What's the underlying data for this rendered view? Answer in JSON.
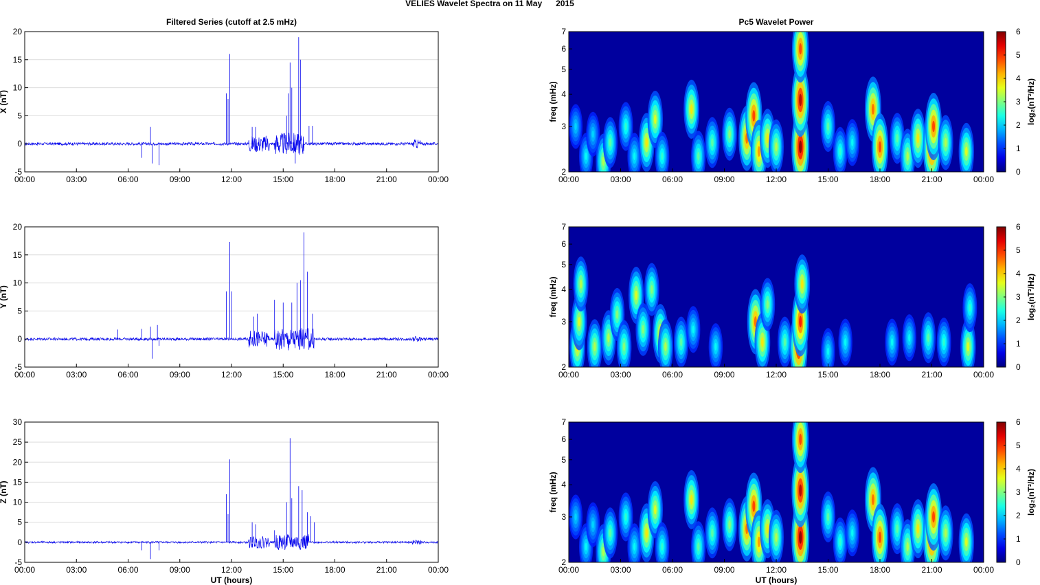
{
  "figure_title": "VELIES Wavelet Spectra on 11 May      2015",
  "colors": {
    "trace": "#0000ee",
    "axis": "#000000",
    "grid": "#d9d9d9"
  },
  "chart_data": [
    {
      "type": "line",
      "title": "Filtered Series (cutoff at 2.5 mHz)",
      "xlabel": "",
      "ylabel": "X (nT)",
      "xticks": [
        "00:00",
        "03:00",
        "06:00",
        "09:00",
        "12:00",
        "15:00",
        "18:00",
        "21:00",
        "00:00"
      ],
      "xlim": [
        0,
        24
      ],
      "ylim": [
        -5,
        20
      ],
      "yticks": [
        "-5",
        "0",
        "5",
        "10",
        "15",
        "20"
      ],
      "spikes": [
        [
          6.8,
          -2.5
        ],
        [
          7.3,
          3
        ],
        [
          7.4,
          -3.5
        ],
        [
          7.8,
          -3.8
        ],
        [
          11.7,
          9
        ],
        [
          11.8,
          8
        ],
        [
          11.9,
          16
        ],
        [
          13.2,
          3
        ],
        [
          13.4,
          3
        ],
        [
          15.2,
          5
        ],
        [
          15.3,
          9
        ],
        [
          15.4,
          14.5
        ],
        [
          15.5,
          10
        ],
        [
          15.7,
          -3.5
        ],
        [
          15.9,
          19
        ],
        [
          16.0,
          15
        ],
        [
          16.5,
          3.2
        ],
        [
          16.7,
          3.2
        ]
      ],
      "noise_windows": [
        [
          13.0,
          14.2,
          1.5
        ],
        [
          14.5,
          16.2,
          2
        ],
        [
          22.5,
          23.0,
          0.8
        ]
      ]
    },
    {
      "type": "line",
      "title": "",
      "xlabel": "",
      "ylabel": "Y (nT)",
      "xticks": [
        "00:00",
        "03:00",
        "06:00",
        "09:00",
        "12:00",
        "15:00",
        "18:00",
        "21:00",
        "00:00"
      ],
      "xlim": [
        0,
        24
      ],
      "ylim": [
        -5,
        20
      ],
      "yticks": [
        "-5",
        "0",
        "5",
        "10",
        "15",
        "20"
      ],
      "spikes": [
        [
          5.4,
          1.7
        ],
        [
          6.8,
          1.8
        ],
        [
          7.3,
          2.2
        ],
        [
          7.4,
          -3.5
        ],
        [
          7.7,
          2.5
        ],
        [
          7.8,
          -1.2
        ],
        [
          11.7,
          8.5
        ],
        [
          11.9,
          17.3
        ],
        [
          12.0,
          8.5
        ],
        [
          13.3,
          4
        ],
        [
          13.5,
          4.5
        ],
        [
          14.5,
          7
        ],
        [
          15.0,
          6.5
        ],
        [
          15.3,
          -2
        ],
        [
          15.5,
          6.5
        ],
        [
          15.8,
          10
        ],
        [
          16.0,
          10.5
        ],
        [
          16.2,
          19
        ],
        [
          16.4,
          12
        ],
        [
          16.7,
          4.5
        ]
      ],
      "noise_windows": [
        [
          13.0,
          14.2,
          1.5
        ],
        [
          14.5,
          16.8,
          2
        ],
        [
          22.5,
          23.0,
          0.5
        ]
      ]
    },
    {
      "type": "line",
      "title": "",
      "xlabel": "UT (hours)",
      "ylabel": "Z (nT)",
      "xticks": [
        "00:00",
        "03:00",
        "06:00",
        "09:00",
        "12:00",
        "15:00",
        "18:00",
        "21:00",
        "00:00"
      ],
      "xlim": [
        0,
        24
      ],
      "ylim": [
        -5,
        30
      ],
      "yticks": [
        "-5",
        "0",
        "5",
        "10",
        "15",
        "20",
        "25",
        "30"
      ],
      "spikes": [
        [
          6.8,
          -2
        ],
        [
          7.3,
          -4.2
        ],
        [
          7.8,
          -2
        ],
        [
          11.7,
          12
        ],
        [
          11.8,
          7
        ],
        [
          11.9,
          20.7
        ],
        [
          13.2,
          5
        ],
        [
          13.4,
          4.5
        ],
        [
          14.5,
          3
        ],
        [
          15.2,
          10
        ],
        [
          15.4,
          26
        ],
        [
          15.5,
          11
        ],
        [
          15.9,
          14
        ],
        [
          16.1,
          13
        ],
        [
          16.4,
          7.5
        ],
        [
          16.6,
          6.5
        ],
        [
          16.8,
          5
        ]
      ],
      "noise_windows": [
        [
          13.0,
          14.2,
          1.5
        ],
        [
          14.5,
          16.5,
          2
        ],
        [
          22.5,
          23.0,
          0.6
        ]
      ]
    },
    {
      "type": "heatmap",
      "title": "Pc5 Wavelet Power",
      "xlabel": "",
      "ylabel": "freq (mHz)",
      "xticks": [
        "00:00",
        "03:00",
        "06:00",
        "09:00",
        "12:00",
        "15:00",
        "18:00",
        "21:00",
        "00:00"
      ],
      "xlim": [
        0,
        24
      ],
      "ylim": [
        2,
        7
      ],
      "yscale": "log",
      "yticks": [
        "2",
        "3",
        "4",
        "5",
        "6",
        "7"
      ],
      "colorbar": {
        "label": "log₂(nT²/Hz)",
        "ticks": [
          "0",
          "1",
          "2",
          "3",
          "4",
          "5",
          "6"
        ],
        "range": [
          0,
          6
        ]
      },
      "blobs": [
        [
          0.4,
          3.0,
          0.25
        ],
        [
          1.0,
          2.3,
          0.3
        ],
        [
          1.4,
          2.8,
          0.25
        ],
        [
          2.0,
          2.2,
          0.5
        ],
        [
          2.4,
          2.6,
          0.4
        ],
        [
          3.3,
          3.0,
          0.35
        ],
        [
          3.8,
          2.3,
          0.3
        ],
        [
          4.5,
          2.6,
          0.6
        ],
        [
          5.0,
          3.2,
          0.55
        ],
        [
          5.4,
          2.3,
          0.35
        ],
        [
          7.1,
          3.5,
          0.6
        ],
        [
          7.5,
          2.3,
          0.4
        ],
        [
          8.3,
          2.6,
          0.4
        ],
        [
          9.3,
          2.8,
          0.45
        ],
        [
          10.3,
          2.7,
          0.75
        ],
        [
          10.7,
          3.3,
          0.8
        ],
        [
          11.0,
          2.4,
          0.7
        ],
        [
          11.5,
          2.7,
          0.6
        ],
        [
          12.0,
          2.5,
          0.5
        ],
        [
          13.4,
          2.5,
          1.0
        ],
        [
          13.4,
          3.8,
          0.95
        ],
        [
          13.4,
          6.0,
          0.8
        ],
        [
          15.0,
          3.0,
          0.4
        ],
        [
          15.7,
          2.4,
          0.35
        ],
        [
          16.4,
          2.6,
          0.3
        ],
        [
          17.6,
          3.5,
          0.75
        ],
        [
          18.0,
          2.5,
          0.8
        ],
        [
          19.0,
          2.7,
          0.4
        ],
        [
          19.6,
          2.3,
          0.5
        ],
        [
          20.2,
          2.7,
          0.6
        ],
        [
          21.0,
          2.5,
          0.95
        ],
        [
          21.1,
          3.0,
          0.8
        ],
        [
          21.8,
          2.6,
          0.5
        ],
        [
          23.0,
          2.4,
          0.55
        ]
      ]
    },
    {
      "type": "heatmap",
      "title": "",
      "xlabel": "",
      "ylabel": "freq (mHz)",
      "xticks": [
        "00:00",
        "03:00",
        "06:00",
        "09:00",
        "12:00",
        "15:00",
        "18:00",
        "21:00",
        "00:00"
      ],
      "xlim": [
        0,
        24
      ],
      "ylim": [
        2,
        7
      ],
      "yscale": "log",
      "yticks": [
        "2",
        "3",
        "4",
        "5",
        "6",
        "7"
      ],
      "colorbar": {
        "label": "log₂(nT²/Hz)",
        "ticks": [
          "0",
          "1",
          "2",
          "3",
          "4",
          "5",
          "6"
        ],
        "range": [
          0,
          6
        ]
      },
      "blobs": [
        [
          0.5,
          2.4,
          0.6
        ],
        [
          0.6,
          3.0,
          0.55
        ],
        [
          0.7,
          4.2,
          0.5
        ],
        [
          1.5,
          2.4,
          0.5
        ],
        [
          2.3,
          2.6,
          0.5
        ],
        [
          2.8,
          3.2,
          0.45
        ],
        [
          3.2,
          2.4,
          0.45
        ],
        [
          3.9,
          3.8,
          0.55
        ],
        [
          4.3,
          2.8,
          0.45
        ],
        [
          4.8,
          4.0,
          0.45
        ],
        [
          5.3,
          2.7,
          0.6
        ],
        [
          5.6,
          2.4,
          0.5
        ],
        [
          6.5,
          2.5,
          0.4
        ],
        [
          7.2,
          2.8,
          0.3
        ],
        [
          8.5,
          2.4,
          0.3
        ],
        [
          10.8,
          3.0,
          0.75
        ],
        [
          11.2,
          2.5,
          0.6
        ],
        [
          11.5,
          3.5,
          0.45
        ],
        [
          12.5,
          2.5,
          0.4
        ],
        [
          13.3,
          2.4,
          0.95
        ],
        [
          13.4,
          3.0,
          0.85
        ],
        [
          13.5,
          4.2,
          0.6
        ],
        [
          15.0,
          2.3,
          0.3
        ],
        [
          16.0,
          2.5,
          0.3
        ],
        [
          18.7,
          2.5,
          0.3
        ],
        [
          19.7,
          2.6,
          0.3
        ],
        [
          20.8,
          2.6,
          0.4
        ],
        [
          21.7,
          2.5,
          0.35
        ],
        [
          23.1,
          2.4,
          0.55
        ],
        [
          23.2,
          3.4,
          0.35
        ]
      ]
    },
    {
      "type": "heatmap",
      "title": "",
      "xlabel": "UT (hours)",
      "ylabel": "freq (mHz)",
      "xticks": [
        "00:00",
        "03:00",
        "06:00",
        "09:00",
        "12:00",
        "15:00",
        "18:00",
        "21:00",
        "00:00"
      ],
      "xlim": [
        0,
        24
      ],
      "ylim": [
        2,
        7
      ],
      "yscale": "log",
      "yticks": [
        "2",
        "3",
        "4",
        "5",
        "6",
        "7"
      ],
      "colorbar": {
        "label": "log₂(nT²/Hz)",
        "ticks": [
          "0",
          "1",
          "2",
          "3",
          "4",
          "5",
          "6"
        ],
        "range": [
          0,
          6
        ]
      },
      "blobs": [
        [
          0.4,
          3.0,
          0.25
        ],
        [
          1.0,
          2.3,
          0.3
        ],
        [
          1.4,
          2.8,
          0.25
        ],
        [
          2.0,
          2.2,
          0.5
        ],
        [
          2.4,
          2.6,
          0.4
        ],
        [
          3.3,
          3.0,
          0.35
        ],
        [
          3.8,
          2.3,
          0.3
        ],
        [
          4.5,
          2.6,
          0.6
        ],
        [
          5.0,
          3.2,
          0.55
        ],
        [
          5.4,
          2.3,
          0.35
        ],
        [
          7.1,
          3.5,
          0.6
        ],
        [
          7.5,
          2.3,
          0.4
        ],
        [
          8.3,
          2.6,
          0.4
        ],
        [
          9.3,
          2.8,
          0.45
        ],
        [
          10.3,
          2.7,
          0.75
        ],
        [
          10.7,
          3.3,
          0.8
        ],
        [
          11.0,
          2.4,
          0.7
        ],
        [
          11.5,
          2.7,
          0.6
        ],
        [
          12.0,
          2.5,
          0.5
        ],
        [
          13.4,
          2.5,
          1.0
        ],
        [
          13.4,
          3.8,
          0.95
        ],
        [
          13.4,
          6.0,
          0.8
        ],
        [
          15.0,
          3.0,
          0.4
        ],
        [
          15.7,
          2.4,
          0.35
        ],
        [
          16.4,
          2.6,
          0.3
        ],
        [
          17.6,
          3.5,
          0.75
        ],
        [
          18.0,
          2.5,
          0.8
        ],
        [
          19.0,
          2.7,
          0.4
        ],
        [
          19.6,
          2.3,
          0.5
        ],
        [
          20.2,
          2.7,
          0.6
        ],
        [
          21.0,
          2.5,
          0.95
        ],
        [
          21.1,
          3.0,
          0.8
        ],
        [
          21.8,
          2.6,
          0.5
        ],
        [
          23.0,
          2.4,
          0.55
        ]
      ]
    }
  ]
}
